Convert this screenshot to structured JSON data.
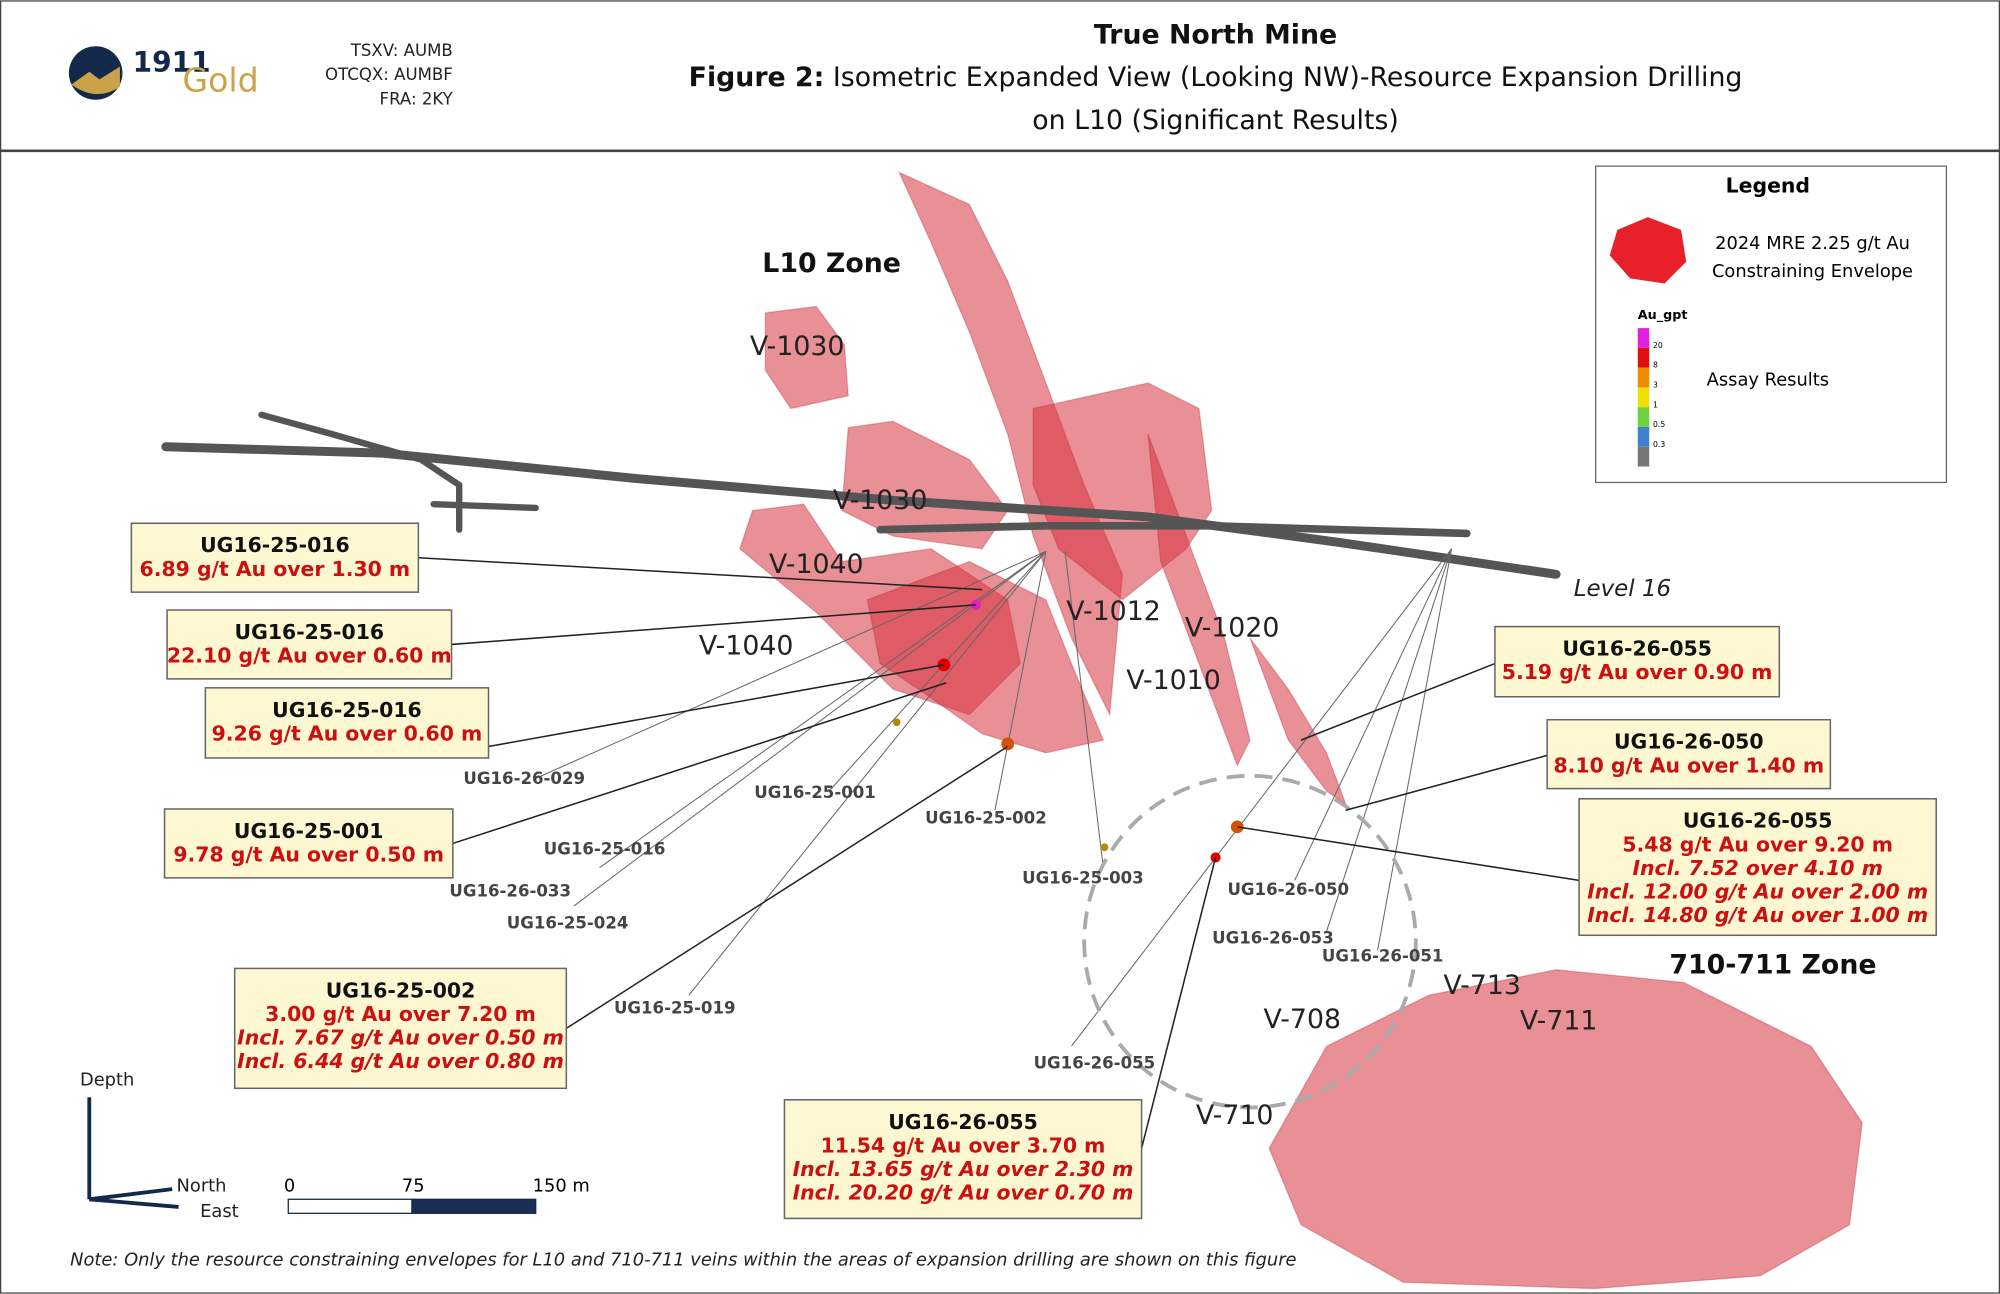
{
  "header": {
    "logo_number": "1911",
    "logo_word": "Gold",
    "tickers": [
      "TSXV: AUMB",
      "OTCQX: AUMBF",
      "FRA: 2KY"
    ],
    "title": "True North Mine",
    "figure_label": "Figure 2:",
    "figure_caption": [
      "Isometric Expanded View (Looking NW)-Resource Expansion Drilling",
      "on L10 (Significant Results)"
    ]
  },
  "legend": {
    "title": "Legend",
    "envelope_label": [
      "2024 MRE 2.25 g/t Au",
      "Constraining Envelope"
    ],
    "scale_title": "Au_gpt",
    "scale_ticks": [
      "20",
      "8",
      "3",
      "1",
      "0.5",
      "0.3"
    ],
    "assay_label": "Assay Results"
  },
  "zones": [
    "L10 Zone",
    "710-711 Zone"
  ],
  "veins": [
    "V-1030",
    "V-1030",
    "V-1040",
    "V-1040",
    "V-1012",
    "V-1020",
    "V-1010",
    "V-713",
    "V-711",
    "V-708",
    "V-710"
  ],
  "level_label": "Level 16",
  "drill_holes": [
    "UG16-26-029",
    "UG16-25-001",
    "UG16-25-002",
    "UG16-25-016",
    "UG16-26-033",
    "UG16-25-024",
    "UG16-25-019",
    "UG16-25-003",
    "UG16-26-050",
    "UG16-26-053",
    "UG16-26-051",
    "UG16-26-055"
  ],
  "callouts": [
    {
      "hole": "UG16-25-016",
      "lines": [
        "6.89 g/t Au over 1.30 m"
      ]
    },
    {
      "hole": "UG16-25-016",
      "lines": [
        "22.10 g/t Au over 0.60 m"
      ]
    },
    {
      "hole": "UG16-25-016",
      "lines": [
        "9.26 g/t Au over 0.60 m"
      ]
    },
    {
      "hole": "UG16-25-001",
      "lines": [
        "9.78 g/t Au over 0.50 m"
      ]
    },
    {
      "hole": "UG16-25-002",
      "lines": [
        "3.00 g/t Au over 7.20 m",
        "Incl. 7.67 g/t Au over 0.50 m",
        "Incl. 6.44 g/t Au over 0.80 m"
      ]
    },
    {
      "hole": "UG16-26-055",
      "lines": [
        "11.54 g/t Au over 3.70 m",
        "Incl. 13.65 g/t Au over 2.30 m",
        "Incl. 20.20 g/t Au over 0.70 m"
      ]
    },
    {
      "hole": "UG16-26-055",
      "lines": [
        "5.19 g/t Au over 0.90 m"
      ]
    },
    {
      "hole": "UG16-26-050",
      "lines": [
        "8.10 g/t Au over 1.40 m"
      ]
    },
    {
      "hole": "UG16-26-055",
      "lines": [
        "5.48 g/t Au over 9.20 m",
        "Incl. 7.52 over 4.10 m",
        "Incl. 12.00 g/t Au over 2.00 m",
        "Incl. 14.80 g/t Au over 1.00 m"
      ]
    }
  ],
  "orientation": {
    "depth": "Depth",
    "north": "North",
    "east": "East"
  },
  "scale_bar": [
    "0",
    "75",
    "150 m"
  ],
  "note": "Note: Only the resource constraining envelopes for L10 and 710-711 veins within the areas of expansion drilling are shown on this figure"
}
